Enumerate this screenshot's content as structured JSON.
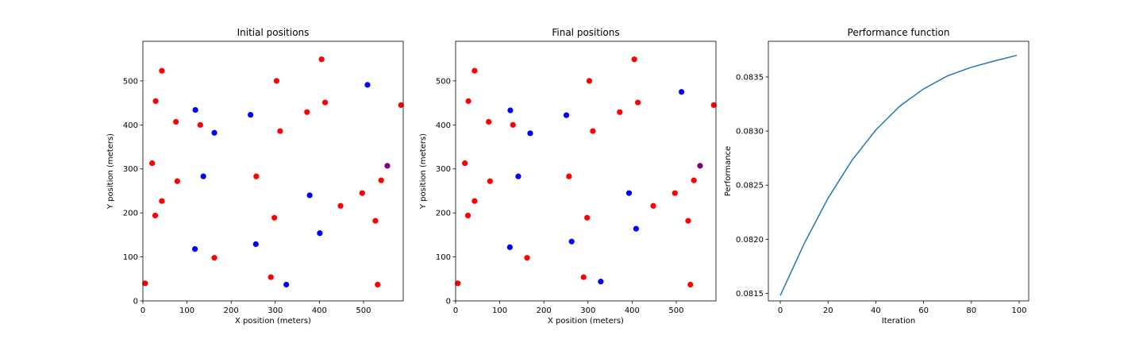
{
  "chart_data": [
    {
      "type": "scatter",
      "title": "Initial positions",
      "xlabel": "X position (meters)",
      "ylabel": "Y position (meters)",
      "xlim": [
        0,
        590
      ],
      "ylim": [
        0,
        590
      ],
      "xticks": [
        0,
        100,
        200,
        300,
        400,
        500
      ],
      "yticks": [
        0,
        100,
        200,
        300,
        400,
        500
      ],
      "grid": false,
      "series": [
        {
          "color": "#ff0000",
          "points": [
            [
              5,
              40
            ],
            [
              21,
              313
            ],
            [
              28,
              194
            ],
            [
              29,
              454
            ],
            [
              43,
              523
            ],
            [
              43,
              227
            ],
            [
              75,
              407
            ],
            [
              78,
              272
            ],
            [
              130,
              400
            ],
            [
              162,
              98
            ],
            [
              257,
              283
            ],
            [
              290,
              54
            ],
            [
              298,
              189
            ],
            [
              303,
              500
            ],
            [
              311,
              386
            ],
            [
              372,
              429
            ],
            [
              405,
              549
            ],
            [
              413,
              451
            ],
            [
              448,
              216
            ],
            [
              497,
              245
            ],
            [
              527,
              182
            ],
            [
              532,
              37
            ],
            [
              540,
              274
            ],
            [
              585,
              445
            ]
          ]
        },
        {
          "color": "#0000ff",
          "points": [
            [
              118,
              118
            ],
            [
              119,
              434
            ],
            [
              137,
              283
            ],
            [
              162,
              382
            ],
            [
              244,
              423
            ],
            [
              256,
              129
            ],
            [
              325,
              37
            ],
            [
              378,
              240
            ],
            [
              401,
              154
            ],
            [
              509,
              491
            ]
          ]
        },
        {
          "color": "#800080",
          "points": [
            [
              554,
              307
            ]
          ]
        }
      ]
    },
    {
      "type": "scatter",
      "title": "Final positions",
      "xlabel": "X position (meters)",
      "ylabel": "Y position (meters)",
      "xlim": [
        0,
        590
      ],
      "ylim": [
        0,
        590
      ],
      "xticks": [
        0,
        100,
        200,
        300,
        400,
        500
      ],
      "yticks": [
        0,
        100,
        200,
        300,
        400,
        500
      ],
      "grid": false,
      "series": [
        {
          "color": "#ff0000",
          "points": [
            [
              5,
              40
            ],
            [
              21,
              313
            ],
            [
              28,
              194
            ],
            [
              29,
              454
            ],
            [
              43,
              523
            ],
            [
              43,
              227
            ],
            [
              75,
              407
            ],
            [
              78,
              272
            ],
            [
              130,
              400
            ],
            [
              162,
              98
            ],
            [
              257,
              283
            ],
            [
              290,
              54
            ],
            [
              298,
              189
            ],
            [
              303,
              500
            ],
            [
              311,
              386
            ],
            [
              372,
              429
            ],
            [
              405,
              549
            ],
            [
              413,
              451
            ],
            [
              448,
              216
            ],
            [
              497,
              245
            ],
            [
              527,
              182
            ],
            [
              532,
              37
            ],
            [
              540,
              274
            ],
            [
              585,
              445
            ]
          ]
        },
        {
          "color": "#0000ff",
          "points": [
            [
              123,
              122
            ],
            [
              124,
              433
            ],
            [
              142,
              283
            ],
            [
              169,
              381
            ],
            [
              251,
              422
            ],
            [
              263,
              135
            ],
            [
              329,
              44
            ],
            [
              393,
              245
            ],
            [
              409,
              164
            ],
            [
              512,
              475
            ]
          ]
        },
        {
          "color": "#800080",
          "points": [
            [
              554,
              307
            ]
          ]
        }
      ]
    },
    {
      "type": "line",
      "title": "Performance function",
      "xlabel": "Iteration",
      "ylabel": "Performance",
      "xlim": [
        -5,
        104
      ],
      "ylim": [
        0.08143,
        0.08383
      ],
      "xticks": [
        0,
        20,
        40,
        60,
        80,
        100
      ],
      "yticks": [
        "0.0815",
        "0.0820",
        "0.0825",
        "0.0830",
        "0.0835"
      ],
      "grid": false,
      "series": [
        {
          "color": "#1f77b4",
          "x": [
            0,
            10,
            20,
            30,
            40,
            50,
            60,
            70,
            80,
            90,
            99
          ],
          "y": [
            0.08148,
            0.08196,
            0.08238,
            0.08273,
            0.08301,
            0.08323,
            0.08339,
            0.08351,
            0.08359,
            0.08365,
            0.0837
          ]
        }
      ]
    }
  ]
}
